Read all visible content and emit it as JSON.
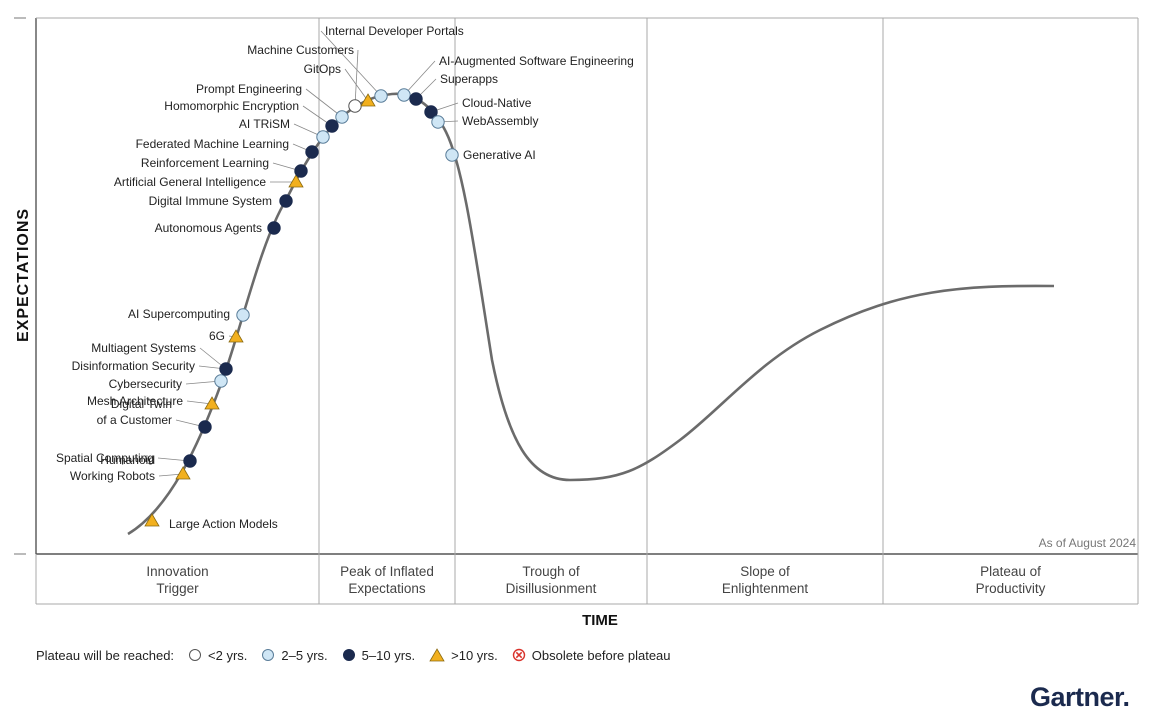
{
  "chart_data": {
    "type": "hype-cycle",
    "y_axis_label": "EXPECTATIONS",
    "x_axis_label": "TIME",
    "as_of": "As of August 2024",
    "phases": [
      "Innovation\nTrigger",
      "Peak of Inflated\nExpectations",
      "Trough of\nDisillusionment",
      "Slope of\nEnlightenment",
      "Plateau of\nProductivity"
    ],
    "technologies": [
      {
        "name": "Large Action Models",
        "plateau": ">10 yrs."
      },
      {
        "name": "Humanoid\nWorking Robots",
        "plateau": ">10 yrs."
      },
      {
        "name": "Spatial Computing",
        "plateau": "5–10 yrs."
      },
      {
        "name": "Digital Twin\nof a Customer",
        "plateau": "5–10 yrs."
      },
      {
        "name": "Mesh Architecture",
        "plateau": ">10 yrs."
      },
      {
        "name": "Cybersecurity",
        "plateau": "2–5 yrs."
      },
      {
        "name": "Disinformation Security",
        "plateau": "5–10 yrs."
      },
      {
        "name": "Multiagent Systems",
        "plateau": "5–10 yrs."
      },
      {
        "name": "6G",
        "plateau": ">10 yrs."
      },
      {
        "name": "AI Supercomputing",
        "plateau": "2–5 yrs."
      },
      {
        "name": "Autonomous Agents",
        "plateau": "5–10 yrs."
      },
      {
        "name": "Digital Immune System",
        "plateau": "5–10 yrs."
      },
      {
        "name": "Artificial General Intelligence",
        "plateau": ">10 yrs."
      },
      {
        "name": "Reinforcement Learning",
        "plateau": "5–10 yrs."
      },
      {
        "name": "Federated Machine Learning",
        "plateau": "5–10 yrs."
      },
      {
        "name": "AI TRiSM",
        "plateau": "2–5 yrs."
      },
      {
        "name": "Homomorphic Encryption",
        "plateau": "5–10 yrs."
      },
      {
        "name": "Prompt Engineering",
        "plateau": "2–5 yrs."
      },
      {
        "name": "Machine Customers",
        "plateau": "<2 yrs."
      },
      {
        "name": "GitOps",
        "plateau": ">10 yrs."
      },
      {
        "name": "Internal Developer Portals",
        "plateau": "2–5 yrs."
      },
      {
        "name": "AI-Augmented Software Engineering",
        "plateau": "2–5 yrs."
      },
      {
        "name": "Superapps",
        "plateau": "5–10 yrs."
      },
      {
        "name": "Cloud-Native",
        "plateau": "5–10 yrs."
      },
      {
        "name": "WebAssembly",
        "plateau": "2–5 yrs."
      },
      {
        "name": "Generative AI",
        "plateau": "2–5 yrs."
      }
    ],
    "legend": {
      "title": "Plateau will be reached:",
      "entries": [
        {
          "label": "<2 yrs.",
          "marker": "white-circle"
        },
        {
          "label": "2–5 yrs.",
          "marker": "light-blue-circle"
        },
        {
          "label": "5–10 yrs.",
          "marker": "navy-circle"
        },
        {
          "label": ">10 yrs.",
          "marker": "yellow-triangle"
        },
        {
          "label": "Obsolete before plateau",
          "marker": "red-x-circle"
        }
      ]
    }
  },
  "brand": "Gartner.",
  "colors": {
    "white": "#ffffff",
    "light_blue": "#cfe6f5",
    "navy": "#1b2a4e",
    "yellow": "#f2b01e",
    "red": "#d9322b",
    "curve": "#6b6b6b",
    "grid": "#a9a9a9"
  }
}
